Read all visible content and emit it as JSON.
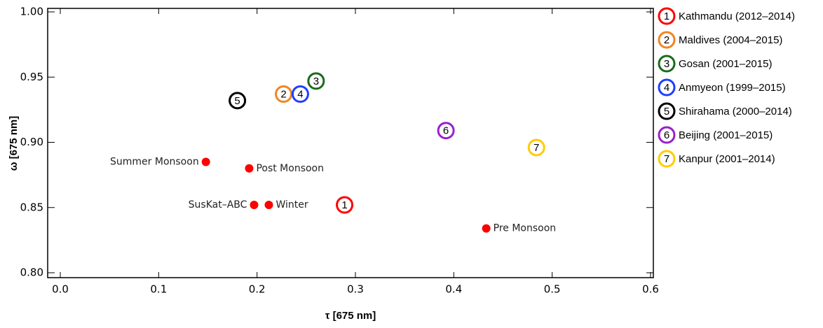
{
  "chart_data": {
    "type": "scatter",
    "x_label": "τ [675 nm]",
    "y_label": "ω [675 nm]",
    "xlim": [
      0,
      0.6
    ],
    "ylim": [
      0.8,
      1.0
    ],
    "xticks": [
      {
        "value": 0,
        "label": "0.0"
      },
      0.1,
      0.2,
      0.3,
      0.4,
      0.5,
      0.6
    ],
    "yticks": [
      {
        "value": 0.8,
        "label": "0.80"
      },
      0.85,
      {
        "value": 0.9,
        "label": "0.90"
      },
      0.95,
      {
        "value": 1.0,
        "label": "1.00"
      }
    ],
    "points": {
      "color": "#ff0000",
      "labels": [
        "Summer Monsoon",
        "Post Monsoon",
        "SusKat–ABC",
        "Winter",
        "Pre Monsoon"
      ],
      "x": [
        0.148,
        0.192,
        0.197,
        0.212,
        0.433
      ],
      "y": [
        0.885,
        0.88,
        0.852,
        0.852,
        0.834
      ]
    },
    "sites": [
      {
        "marker": "1",
        "name": "Kathmandu (2012–2014)",
        "color": "#ff0000",
        "x": 0.289,
        "y": 0.852
      },
      {
        "marker": "2",
        "name": "Maldives (2004–2015)",
        "color": "#f28522",
        "x": 0.227,
        "y": 0.937
      },
      {
        "marker": "3",
        "name": "Gosan (2001–2015)",
        "color": "#1a6b1a",
        "x": 0.26,
        "y": 0.947
      },
      {
        "marker": "4",
        "name": "Anmyeon (1999–2015)",
        "color": "#1f3fff",
        "x": 0.244,
        "y": 0.937
      },
      {
        "marker": "5",
        "name": "Shirahama (2000–2014)",
        "color": "#000000",
        "x": 0.18,
        "y": 0.932
      },
      {
        "marker": "6",
        "name": "Beijing (2001–2015)",
        "color": "#9b1fcf",
        "x": 0.392,
        "y": 0.909
      },
      {
        "marker": "7",
        "name": "Kanpur (2001–2014)",
        "color": "#ffcc00",
        "x": 0.484,
        "y": 0.896
      }
    ]
  }
}
